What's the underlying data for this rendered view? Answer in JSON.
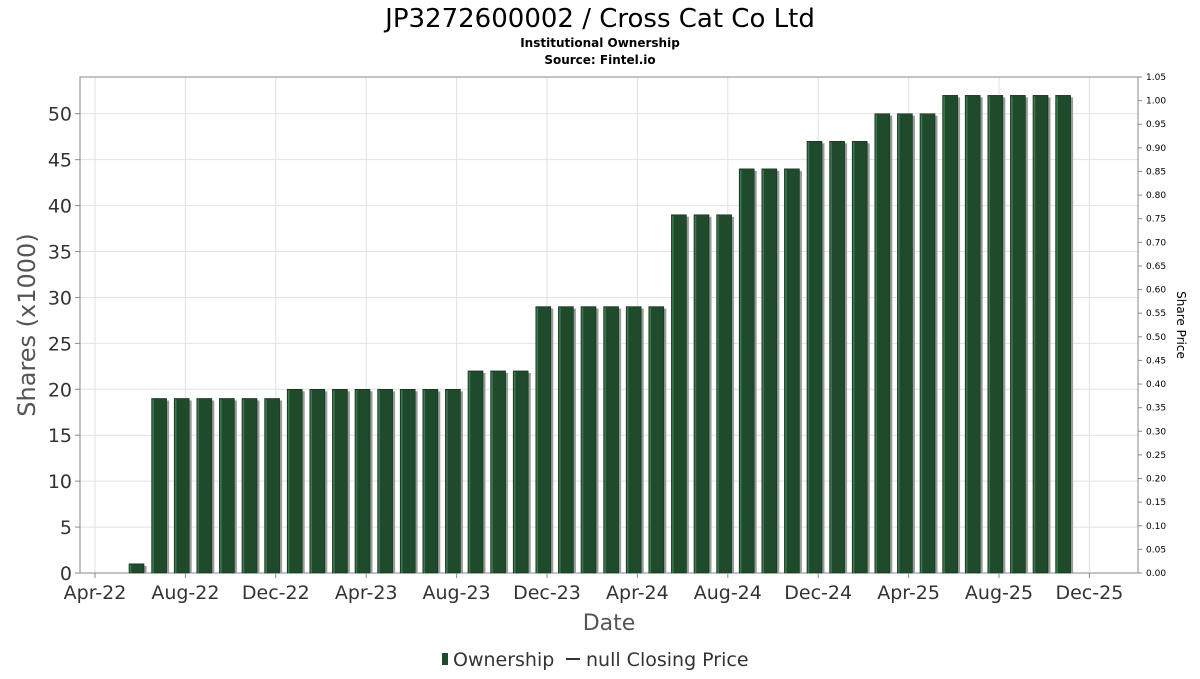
{
  "chart_data": {
    "type": "bar",
    "title": "JP3272600002 / Cross Cat Co Ltd",
    "subtitle": "Institutional Ownership",
    "source": "Source: Fintel.io",
    "xlabel": "Date",
    "ylabel": "Shares (x1000)",
    "y2label": "Share Price",
    "x_ticks": [
      "Apr-22",
      "Aug-22",
      "Dec-22",
      "Apr-23",
      "Aug-23",
      "Dec-23",
      "Apr-24",
      "Aug-24",
      "Dec-24",
      "Apr-25",
      "Aug-25",
      "Dec-25"
    ],
    "y_ticks": [
      "0",
      "5",
      "10",
      "15",
      "20",
      "25",
      "30",
      "35",
      "40",
      "45",
      "50"
    ],
    "y2_ticks": [
      "0.00",
      "0.05",
      "0.10",
      "0.15",
      "0.20",
      "0.25",
      "0.30",
      "0.35",
      "0.40",
      "0.45",
      "0.50",
      "0.55",
      "0.60",
      "0.65",
      "0.70",
      "0.75",
      "0.80",
      "0.85",
      "0.90",
      "0.95",
      "1.00",
      "1.05"
    ],
    "ylim": [
      0,
      54
    ],
    "y2lim": [
      0,
      1.05
    ],
    "grid": true,
    "legend_position": "bottom",
    "series": [
      {
        "name": "Ownership",
        "color": "#1f4a2c",
        "values": [
          1,
          19,
          19,
          19,
          19,
          19,
          19,
          20,
          20,
          20,
          20,
          20,
          20,
          20,
          20,
          22,
          22,
          22,
          29,
          29,
          29,
          29,
          29,
          29,
          39,
          39,
          39,
          44,
          44,
          44,
          47,
          47,
          47,
          50,
          50,
          50,
          52,
          52,
          52,
          52,
          52,
          52
        ]
      },
      {
        "name": "null Closing Price",
        "color": "#333333",
        "values": []
      }
    ]
  }
}
